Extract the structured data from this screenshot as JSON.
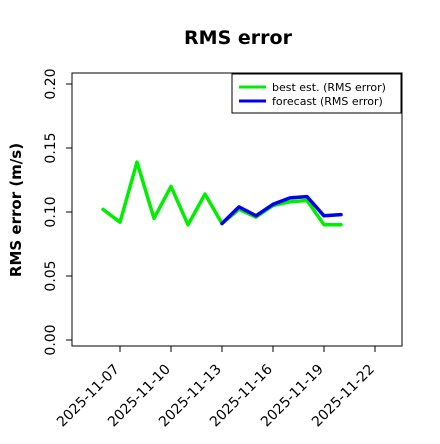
{
  "chart_data": {
    "type": "line",
    "title": "RMS error",
    "xlabel": "",
    "ylabel": "RMS error (m/s)",
    "ylim": [
      0.0,
      0.21
    ],
    "yticks": [
      "0.00",
      "0.05",
      "0.10",
      "0.15",
      "0.20"
    ],
    "xticks": [
      "2025-11-07",
      "2025-11-10",
      "2025-11-13",
      "2025-11-16",
      "2025-11-19",
      "2025-11-22"
    ],
    "highlighted_xtick": "2025-11-13",
    "highlight_color": "#228B22",
    "grid": false,
    "legend_position": "top-right",
    "series": [
      {
        "name": "best est. (RMS error)",
        "color": "#00ee00",
        "x": [
          "2025-11-06",
          "2025-11-07",
          "2025-11-08",
          "2025-11-09",
          "2025-11-10",
          "2025-11-11",
          "2025-11-12",
          "2025-11-13",
          "2025-11-14",
          "2025-11-15",
          "2025-11-16",
          "2025-11-17",
          "2025-11-18",
          "2025-11-19",
          "2025-11-20"
        ],
        "values": [
          0.102,
          0.092,
          0.139,
          0.095,
          0.12,
          0.09,
          0.114,
          0.091,
          0.102,
          0.096,
          0.105,
          0.108,
          0.109,
          0.09,
          0.09
        ]
      },
      {
        "name": "forecast (RMS error)",
        "color": "#0000ee",
        "x": [
          "2025-11-13",
          "2025-11-14",
          "2025-11-15",
          "2025-11-16",
          "2025-11-17",
          "2025-11-18",
          "2025-11-19",
          "2025-11-20"
        ],
        "values": [
          0.091,
          0.104,
          0.097,
          0.106,
          0.111,
          0.112,
          0.097,
          0.098
        ]
      }
    ]
  }
}
